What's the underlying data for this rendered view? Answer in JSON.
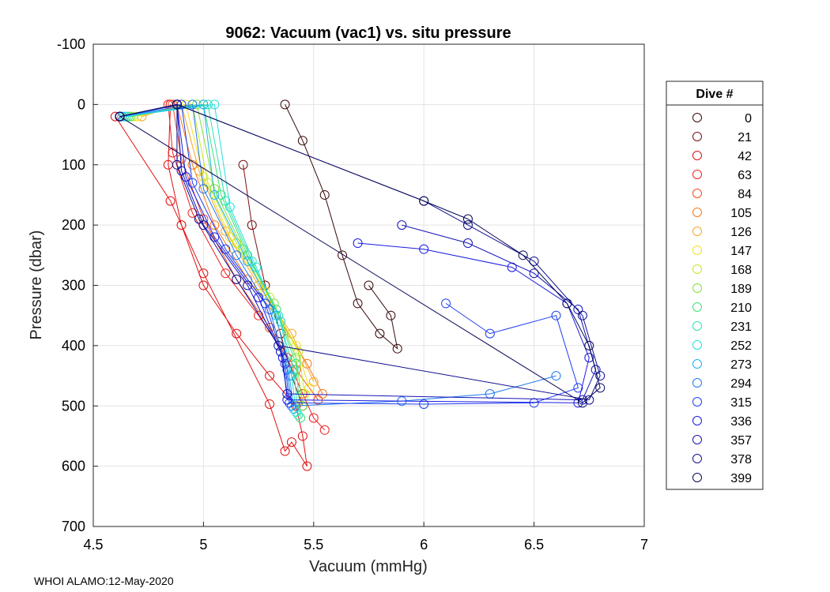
{
  "footer": "WHOI ALAMO:12-May-2020",
  "chart_data": {
    "type": "line",
    "title": "9062: Vacuum (vac1) vs. situ pressure",
    "xlabel": "Vacuum (mmHg)",
    "ylabel": "Pressure (dbar)",
    "xlim": [
      4.5,
      7
    ],
    "ylim": [
      -100,
      700
    ],
    "y_reversed": true,
    "grid": true,
    "xticks": [
      4.5,
      5,
      5.5,
      6,
      6.5,
      7
    ],
    "xtick_labels": [
      "4.5",
      "5",
      "5.5",
      "6",
      "6.5",
      "7"
    ],
    "yticks": [
      -100,
      0,
      100,
      200,
      300,
      400,
      500,
      600,
      700
    ],
    "ytick_labels": [
      "-100",
      "0",
      "100",
      "200",
      "300",
      "400",
      "500",
      "600",
      "700"
    ],
    "marker": "circle-open",
    "legend": {
      "title": "Dive #",
      "placement": "right-outside",
      "entries": [
        {
          "label": "0",
          "color": "#3a0a0a"
        },
        {
          "label": "21",
          "color": "#7a1010"
        },
        {
          "label": "42",
          "color": "#e01010"
        },
        {
          "label": "63",
          "color": "#f02020"
        },
        {
          "label": "84",
          "color": "#f24a1e"
        },
        {
          "label": "105",
          "color": "#f47a1e"
        },
        {
          "label": "126",
          "color": "#f5a623"
        },
        {
          "label": "147",
          "color": "#f2e21e"
        },
        {
          "label": "168",
          "color": "#c2e82a"
        },
        {
          "label": "189",
          "color": "#7ee23a"
        },
        {
          "label": "210",
          "color": "#3ee07a"
        },
        {
          "label": "231",
          "color": "#2ee0b0"
        },
        {
          "label": "252",
          "color": "#22e0e0"
        },
        {
          "label": "273",
          "color": "#1eb0f0"
        },
        {
          "label": "294",
          "color": "#1e78f0"
        },
        {
          "label": "315",
          "color": "#1e3ef0"
        },
        {
          "label": "336",
          "color": "#1a1ae0"
        },
        {
          "label": "357",
          "color": "#1414b8"
        },
        {
          "label": "378",
          "color": "#10108e"
        },
        {
          "label": "399",
          "color": "#0b0b5a"
        }
      ]
    },
    "series": [
      {
        "name": "0",
        "color": "#3a0a0a",
        "points": [
          [
            5.37,
            0
          ],
          [
            5.45,
            60
          ],
          [
            5.55,
            150
          ],
          [
            5.63,
            250
          ],
          [
            5.7,
            330
          ],
          [
            5.8,
            380
          ],
          [
            5.88,
            405
          ],
          [
            5.85,
            350
          ],
          [
            5.75,
            300
          ]
        ]
      },
      {
        "name": "21",
        "color": "#7a1010",
        "points": [
          [
            5.18,
            100
          ],
          [
            5.22,
            200
          ],
          [
            5.28,
            300
          ],
          [
            5.35,
            380
          ],
          [
            5.4,
            450
          ],
          [
            5.45,
            500
          ]
        ]
      },
      {
        "name": "42",
        "color": "#e01010",
        "points": [
          [
            4.85,
            0
          ],
          [
            4.84,
            100
          ],
          [
            4.9,
            200
          ],
          [
            5.0,
            300
          ],
          [
            5.15,
            380
          ],
          [
            5.3,
            450
          ],
          [
            5.42,
            500
          ],
          [
            5.45,
            550
          ],
          [
            5.47,
            600
          ],
          [
            5.4,
            560
          ],
          [
            5.37,
            575
          ],
          [
            5.3,
            497
          ],
          [
            5.0,
            280
          ],
          [
            4.85,
            160
          ],
          [
            4.6,
            20
          ]
        ]
      },
      {
        "name": "63",
        "color": "#f02020",
        "points": [
          [
            4.84,
            0
          ],
          [
            4.86,
            80
          ],
          [
            4.95,
            180
          ],
          [
            5.1,
            280
          ],
          [
            5.25,
            350
          ],
          [
            5.38,
            420
          ],
          [
            5.45,
            480
          ],
          [
            5.5,
            520
          ],
          [
            5.55,
            540
          ]
        ]
      },
      {
        "name": "84",
        "color": "#f24a1e",
        "points": [
          [
            4.86,
            0
          ],
          [
            4.9,
            90
          ],
          [
            5.0,
            190
          ],
          [
            5.15,
            290
          ],
          [
            5.3,
            370
          ],
          [
            5.42,
            440
          ],
          [
            5.52,
            490
          ]
        ]
      },
      {
        "name": "105",
        "color": "#f47a1e",
        "points": [
          [
            4.88,
            0
          ],
          [
            4.95,
            100
          ],
          [
            5.05,
            200
          ],
          [
            5.2,
            290
          ],
          [
            5.35,
            360
          ],
          [
            5.47,
            430
          ],
          [
            5.54,
            480
          ]
        ]
      },
      {
        "name": "126",
        "color": "#f5a623",
        "points": [
          [
            4.72,
            20
          ],
          [
            4.9,
            0
          ],
          [
            4.98,
            110
          ],
          [
            5.1,
            210
          ],
          [
            5.25,
            300
          ],
          [
            5.4,
            380
          ],
          [
            5.5,
            460
          ]
        ]
      },
      {
        "name": "147",
        "color": "#f2e21e",
        "points": [
          [
            4.7,
            20
          ],
          [
            4.92,
            0
          ],
          [
            5.0,
            120
          ],
          [
            5.12,
            220
          ],
          [
            5.28,
            310
          ],
          [
            5.42,
            400
          ],
          [
            5.48,
            470
          ]
        ]
      },
      {
        "name": "168",
        "color": "#c2e82a",
        "points": [
          [
            4.68,
            20
          ],
          [
            4.95,
            0
          ],
          [
            5.02,
            130
          ],
          [
            5.15,
            230
          ],
          [
            5.3,
            320
          ],
          [
            5.43,
            410
          ],
          [
            5.46,
            480
          ]
        ]
      },
      {
        "name": "189",
        "color": "#7ee23a",
        "points": [
          [
            4.67,
            20
          ],
          [
            4.97,
            0
          ],
          [
            5.05,
            140
          ],
          [
            5.18,
            240
          ],
          [
            5.32,
            330
          ],
          [
            5.42,
            420
          ],
          [
            5.45,
            500
          ]
        ]
      },
      {
        "name": "210",
        "color": "#3ee07a",
        "points": [
          [
            4.66,
            20
          ],
          [
            5.0,
            0
          ],
          [
            5.08,
            150
          ],
          [
            5.2,
            250
          ],
          [
            5.33,
            340
          ],
          [
            5.42,
            430
          ],
          [
            5.44,
            520
          ]
        ]
      },
      {
        "name": "231",
        "color": "#2ee0b0",
        "points": [
          [
            4.65,
            20
          ],
          [
            5.02,
            0
          ],
          [
            5.1,
            160
          ],
          [
            5.22,
            260
          ],
          [
            5.34,
            350
          ],
          [
            5.41,
            440
          ],
          [
            5.43,
            515
          ]
        ]
      },
      {
        "name": "252",
        "color": "#22e0e0",
        "points": [
          [
            4.64,
            20
          ],
          [
            5.05,
            0
          ],
          [
            5.12,
            170
          ],
          [
            5.24,
            270
          ],
          [
            5.35,
            360
          ],
          [
            5.4,
            450
          ],
          [
            5.42,
            510
          ]
        ]
      },
      {
        "name": "273",
        "color": "#1eb0f0",
        "points": [
          [
            4.63,
            20
          ],
          [
            5.0,
            0
          ],
          [
            5.05,
            150
          ],
          [
            5.2,
            260
          ],
          [
            5.33,
            350
          ],
          [
            5.39,
            450
          ],
          [
            5.41,
            505
          ]
        ]
      },
      {
        "name": "294",
        "color": "#1e78f0",
        "points": [
          [
            4.62,
            20
          ],
          [
            4.95,
            0
          ],
          [
            5.0,
            140
          ],
          [
            5.15,
            250
          ],
          [
            5.3,
            340
          ],
          [
            5.38,
            440
          ],
          [
            5.4,
            500
          ],
          [
            5.9,
            492
          ],
          [
            6.3,
            480
          ],
          [
            6.6,
            450
          ]
        ]
      },
      {
        "name": "315",
        "color": "#1e3ef0",
        "points": [
          [
            4.62,
            20
          ],
          [
            4.9,
            0
          ],
          [
            4.95,
            130
          ],
          [
            5.1,
            240
          ],
          [
            5.28,
            330
          ],
          [
            5.37,
            430
          ],
          [
            5.39,
            495
          ],
          [
            6.0,
            497
          ],
          [
            6.5,
            495
          ],
          [
            6.7,
            470
          ],
          [
            6.6,
            350
          ],
          [
            6.3,
            380
          ],
          [
            6.1,
            330
          ]
        ]
      },
      {
        "name": "336",
        "color": "#1a1ae0",
        "points": [
          [
            4.62,
            20
          ],
          [
            4.88,
            0
          ],
          [
            4.92,
            120
          ],
          [
            5.05,
            220
          ],
          [
            5.25,
            320
          ],
          [
            5.36,
            420
          ],
          [
            5.38,
            490
          ],
          [
            6.7,
            495
          ],
          [
            6.75,
            420
          ],
          [
            6.65,
            330
          ],
          [
            6.4,
            270
          ],
          [
            6.0,
            240
          ],
          [
            5.7,
            230
          ]
        ]
      },
      {
        "name": "357",
        "color": "#1414b8",
        "points": [
          [
            4.62,
            20
          ],
          [
            4.88,
            0
          ],
          [
            4.9,
            110
          ],
          [
            5.0,
            200
          ],
          [
            5.2,
            300
          ],
          [
            5.35,
            410
          ],
          [
            5.38,
            480
          ],
          [
            6.72,
            490
          ],
          [
            6.78,
            440
          ],
          [
            6.7,
            340
          ],
          [
            6.5,
            280
          ],
          [
            6.2,
            230
          ],
          [
            5.9,
            200
          ]
        ]
      },
      {
        "name": "378",
        "color": "#10108e",
        "points": [
          [
            4.62,
            20
          ],
          [
            4.88,
            0
          ],
          [
            4.88,
            100
          ],
          [
            4.98,
            190
          ],
          [
            5.15,
            290
          ],
          [
            5.34,
            400
          ],
          [
            6.75,
            490
          ],
          [
            6.8,
            450
          ],
          [
            6.72,
            350
          ],
          [
            6.5,
            260
          ],
          [
            6.2,
            200
          ],
          [
            6.0,
            160
          ],
          [
            4.88,
            0
          ]
        ]
      },
      {
        "name": "399",
        "color": "#0b0b5a",
        "points": [
          [
            4.62,
            20
          ],
          [
            4.88,
            0
          ],
          [
            6.0,
            160
          ],
          [
            6.2,
            190
          ],
          [
            6.45,
            250
          ],
          [
            6.65,
            330
          ],
          [
            6.75,
            400
          ],
          [
            6.8,
            470
          ],
          [
            6.72,
            495
          ],
          [
            4.62,
            20
          ]
        ]
      }
    ]
  }
}
